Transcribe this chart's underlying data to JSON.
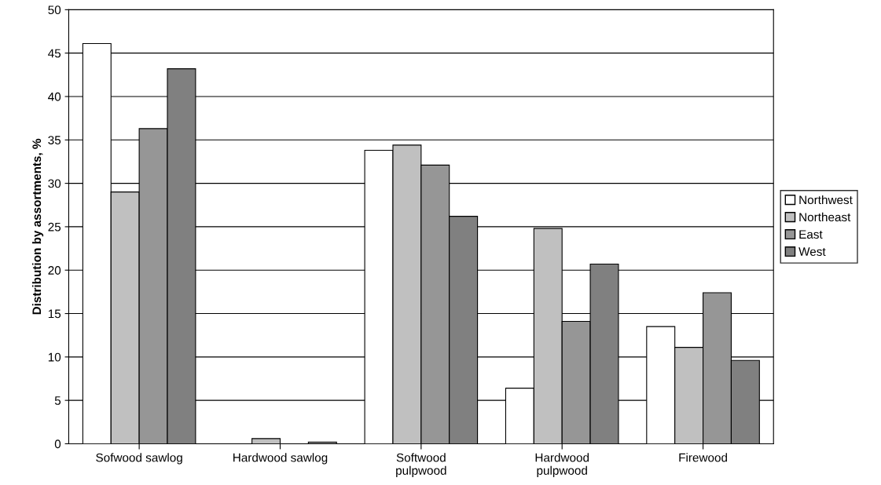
{
  "chart_data": {
    "type": "bar",
    "ylabel": "Distribution by assortments, %",
    "categories": [
      "Sofwood sawlog",
      "Hardwood sawlog",
      "Softwood\npulpwood",
      "Hardwood\npulpwood",
      "Firewood"
    ],
    "series": [
      {
        "name": "Northwest",
        "color": "#ffffff",
        "values": [
          46.1,
          null,
          33.8,
          6.4,
          13.5
        ]
      },
      {
        "name": "Northeast",
        "color": "#c0c0c0",
        "values": [
          29.0,
          0.6,
          34.4,
          24.8,
          11.1
        ]
      },
      {
        "name": "East",
        "color": "#969696",
        "values": [
          36.3,
          null,
          32.1,
          14.1,
          17.4
        ]
      },
      {
        "name": "West",
        "color": "#808080",
        "values": [
          43.2,
          0.2,
          26.2,
          20.7,
          9.6
        ]
      }
    ],
    "ylim": [
      0,
      50
    ],
    "yticks": [
      0,
      5,
      10,
      15,
      20,
      25,
      30,
      35,
      40,
      45,
      50
    ],
    "grid": "y",
    "legend": "right"
  }
}
